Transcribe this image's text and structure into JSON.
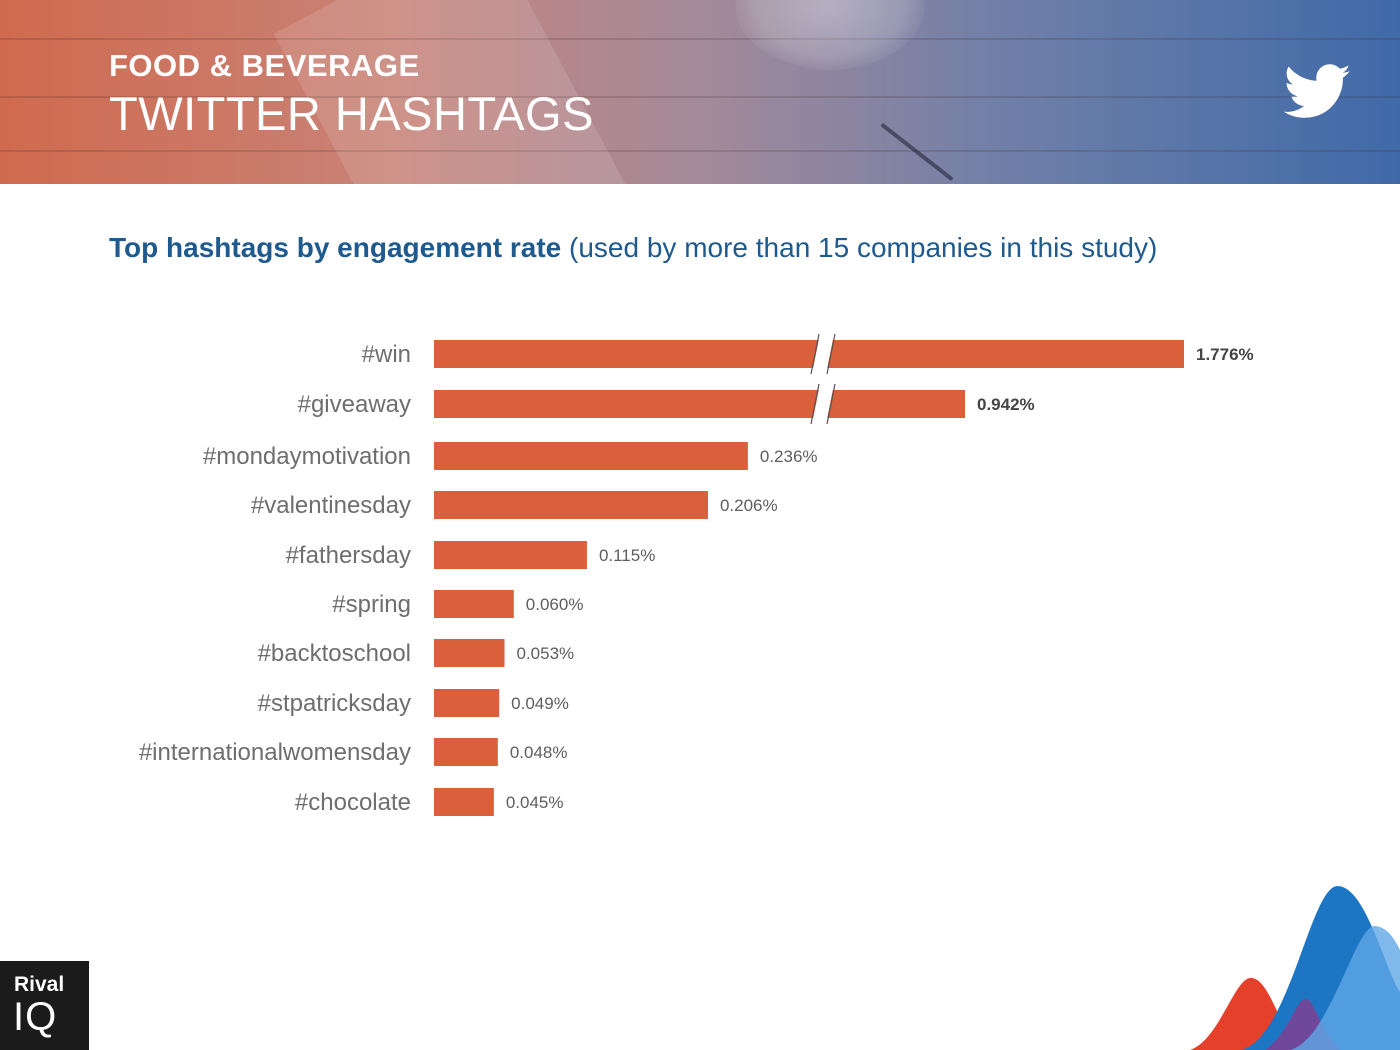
{
  "header": {
    "kicker": "FOOD & BEVERAGE",
    "title": "TWITTER HASHTAGS",
    "icon": "twitter-bird-icon"
  },
  "subtitle": {
    "bold": "Top hashtags by engagement rate",
    "rest": "(used by more than 15 companies in this study)"
  },
  "chart_data": {
    "type": "bar",
    "orientation": "horizontal",
    "axis_break": true,
    "categories": [
      "#win",
      "#giveaway",
      "#mondaymotivation",
      "#valentinesday",
      "#fathersday",
      "#spring",
      "#backtoschool",
      "#stpatricksday",
      "#internationalwomensday",
      "#chocolate"
    ],
    "values": [
      1.776,
      0.942,
      0.236,
      0.206,
      0.115,
      0.06,
      0.053,
      0.049,
      0.048,
      0.045
    ],
    "value_labels": [
      "1.776%",
      "0.942%",
      "0.236%",
      "0.206%",
      "0.115%",
      "0.060%",
      "0.053%",
      "0.049%",
      "0.048%",
      "0.045%"
    ],
    "broken_bars": [
      "#win",
      "#giveaway"
    ],
    "bar_color": "#d9603b",
    "grid": false,
    "legend": "none"
  },
  "logo": {
    "line1": "Rival",
    "line2": "IQ"
  }
}
